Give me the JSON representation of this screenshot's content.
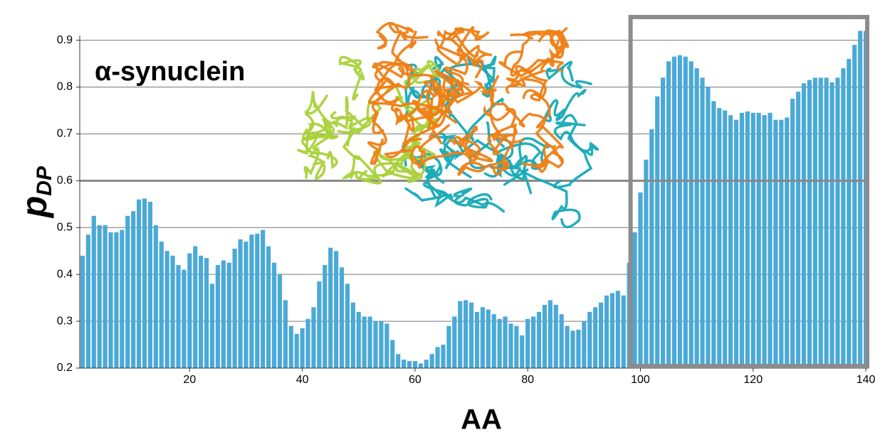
{
  "chart_data": {
    "type": "bar",
    "title": "α-synuclein",
    "xlabel": "AA",
    "ylabel": {
      "text": "p",
      "subscript": "DP"
    },
    "color": "#4aa9d7",
    "x": [
      1,
      2,
      3,
      4,
      5,
      6,
      7,
      8,
      9,
      10,
      11,
      12,
      13,
      14,
      15,
      16,
      17,
      18,
      19,
      20,
      21,
      22,
      23,
      24,
      25,
      26,
      27,
      28,
      29,
      30,
      31,
      32,
      33,
      34,
      35,
      36,
      37,
      38,
      39,
      40,
      41,
      42,
      43,
      44,
      45,
      46,
      47,
      48,
      49,
      50,
      51,
      52,
      53,
      54,
      55,
      56,
      57,
      58,
      59,
      60,
      61,
      62,
      63,
      64,
      65,
      66,
      67,
      68,
      69,
      70,
      71,
      72,
      73,
      74,
      75,
      76,
      77,
      78,
      79,
      80,
      81,
      82,
      83,
      84,
      85,
      86,
      87,
      88,
      89,
      90,
      91,
      92,
      93,
      94,
      95,
      96,
      97,
      98,
      99,
      100,
      101,
      102,
      103,
      104,
      105,
      106,
      107,
      108,
      109,
      110,
      111,
      112,
      113,
      114,
      115,
      116,
      117,
      118,
      119,
      120,
      121,
      122,
      123,
      124,
      125,
      126,
      127,
      128,
      129,
      130,
      131,
      132,
      133,
      134,
      135,
      136,
      137,
      138,
      139,
      140
    ],
    "values": [
      0.44,
      0.485,
      0.525,
      0.505,
      0.505,
      0.49,
      0.49,
      0.495,
      0.525,
      0.535,
      0.56,
      0.562,
      0.555,
      0.505,
      0.47,
      0.45,
      0.44,
      0.42,
      0.41,
      0.445,
      0.46,
      0.44,
      0.435,
      0.38,
      0.42,
      0.43,
      0.425,
      0.455,
      0.475,
      0.47,
      0.485,
      0.487,
      0.495,
      0.46,
      0.425,
      0.4,
      0.345,
      0.29,
      0.273,
      0.285,
      0.305,
      0.33,
      0.385,
      0.42,
      0.457,
      0.45,
      0.415,
      0.38,
      0.34,
      0.32,
      0.31,
      0.31,
      0.3,
      0.3,
      0.295,
      0.26,
      0.23,
      0.218,
      0.215,
      0.215,
      0.21,
      0.218,
      0.23,
      0.245,
      0.25,
      0.29,
      0.31,
      0.343,
      0.345,
      0.34,
      0.32,
      0.33,
      0.325,
      0.315,
      0.305,
      0.31,
      0.295,
      0.29,
      0.27,
      0.305,
      0.31,
      0.32,
      0.335,
      0.345,
      0.335,
      0.315,
      0.29,
      0.28,
      0.282,
      0.3,
      0.32,
      0.33,
      0.34,
      0.355,
      0.36,
      0.365,
      0.355,
      0.425,
      0.49,
      0.575,
      0.645,
      0.71,
      0.78,
      0.82,
      0.855,
      0.865,
      0.868,
      0.865,
      0.855,
      0.84,
      0.82,
      0.8,
      0.77,
      0.755,
      0.75,
      0.74,
      0.73,
      0.745,
      0.748,
      0.745,
      0.745,
      0.74,
      0.745,
      0.73,
      0.73,
      0.735,
      0.775,
      0.79,
      0.808,
      0.815,
      0.82,
      0.82,
      0.82,
      0.81,
      0.82,
      0.84,
      0.86,
      0.89,
      0.92,
      0.92
    ],
    "xlim": [
      0.5,
      140.5
    ],
    "xticks": [
      20,
      40,
      60,
      80,
      100,
      120,
      140
    ],
    "ylim": [
      0.2,
      0.91
    ],
    "yticks": [
      0.2,
      0.3,
      0.4,
      0.5,
      0.6,
      0.7,
      0.8,
      0.9
    ],
    "grid": true,
    "hline": 0.6,
    "highlight": {
      "x": [
        98.5,
        140.5
      ]
    }
  }
}
